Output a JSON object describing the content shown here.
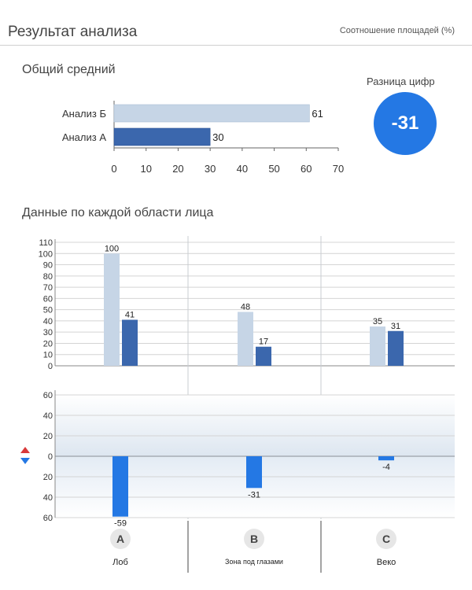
{
  "header": {
    "title": "Результат анализа",
    "subtitle": "Соотношение площадей (%)"
  },
  "colors": {
    "series_a": "#3b67ad",
    "series_b": "#c6d5e6",
    "diff": "#2478e4",
    "grid": "#d4d4d4"
  },
  "chart_data": [
    {
      "type": "bar",
      "orientation": "horizontal",
      "title": "Общий средний",
      "categories": [
        "Анализ Б",
        "Анализ  А"
      ],
      "values": [
        61,
        30
      ],
      "xlim": [
        0,
        70
      ],
      "xticks": [
        0,
        10,
        20,
        30,
        40,
        50,
        60,
        70
      ],
      "grid": false
    },
    {
      "type": "bar",
      "title": "Данные по каждой области лица",
      "categories": [
        "Лоб",
        "Зона под глазами",
        "Веко"
      ],
      "category_badges": [
        "A",
        "B",
        "C"
      ],
      "series": [
        {
          "values": [
            100,
            48,
            35
          ]
        },
        {
          "values": [
            41,
            17,
            31
          ]
        }
      ],
      "ylim": [
        0,
        110
      ],
      "yticks": [
        0,
        10,
        20,
        30,
        40,
        50,
        60,
        70,
        80,
        90,
        100,
        110
      ],
      "grid": true
    },
    {
      "type": "bar",
      "categories": [
        "Лоб",
        "Зона под глазами",
        "Веко"
      ],
      "values": [
        -59,
        -31,
        -4
      ],
      "ylim": [
        -60,
        60
      ],
      "yticks": [
        60,
        40,
        20,
        0,
        20,
        40,
        60
      ],
      "grid": true
    }
  ],
  "difference": {
    "label": "Разница цифр",
    "value": "-31"
  }
}
